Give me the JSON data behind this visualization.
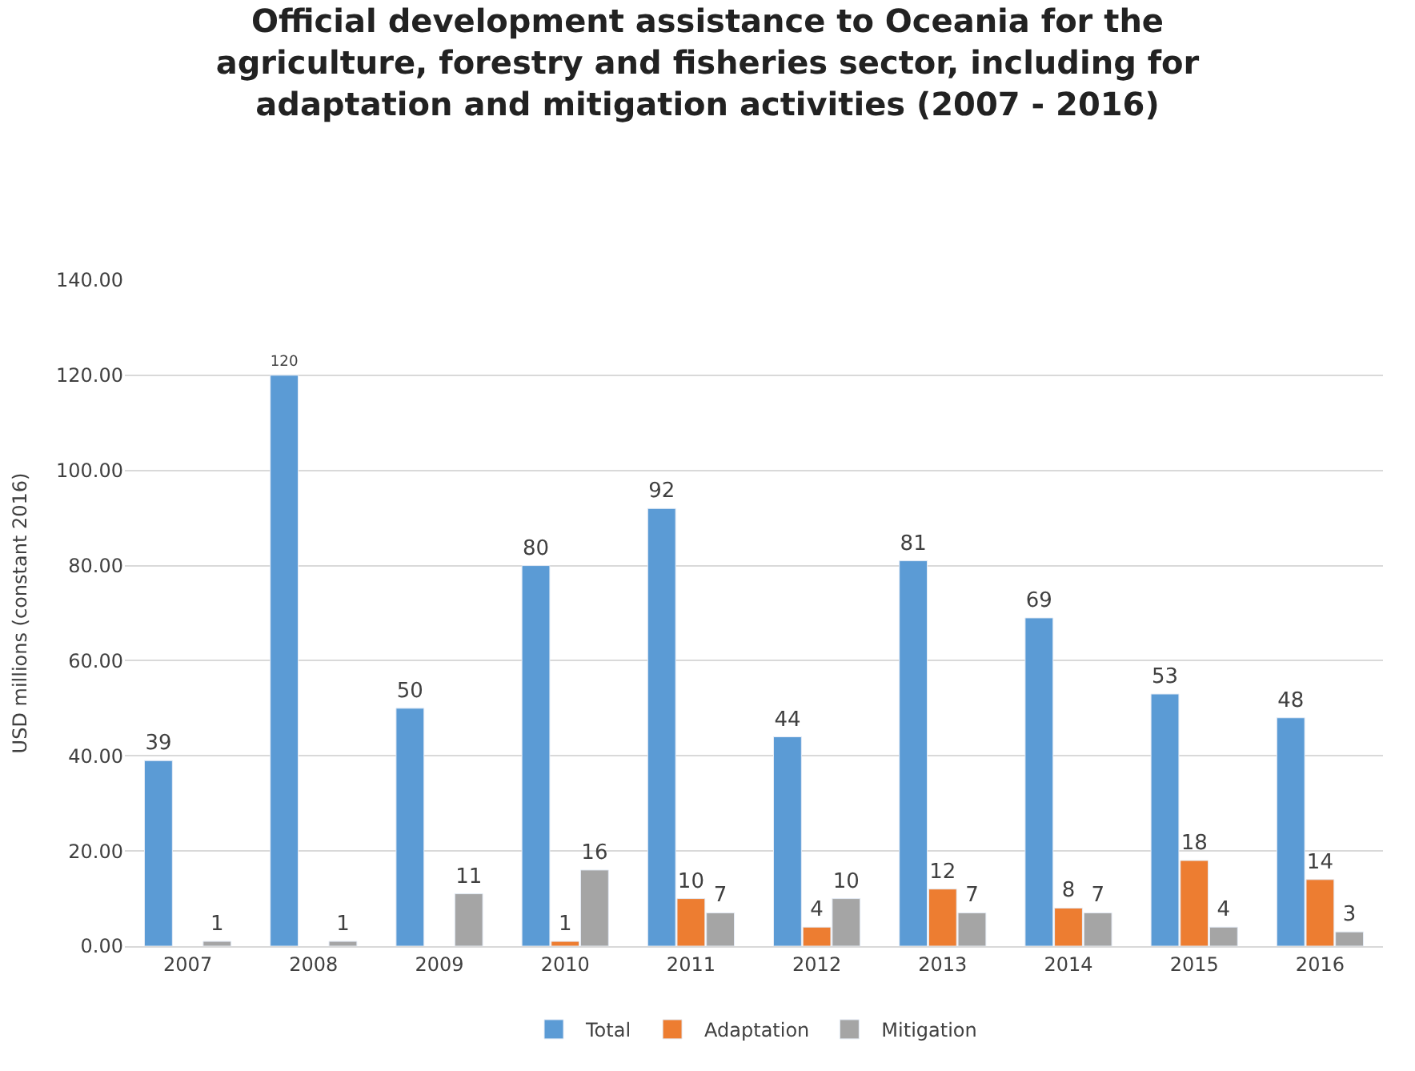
{
  "chart_data": {
    "type": "bar",
    "title": "Official development assistance to Oceania for the agriculture, forestry and fisheries sector, including for adaptation and mitigation activities (2007 - 2016)",
    "ylabel": "USD millions (constant 2016)",
    "categories": [
      "2007",
      "2008",
      "2009",
      "2010",
      "2011",
      "2012",
      "2013",
      "2014",
      "2015",
      "2016"
    ],
    "series": [
      {
        "name": "Total",
        "color": "#5b9bd5",
        "values": [
          39,
          120,
          50,
          80,
          92,
          44,
          81,
          69,
          53,
          48
        ]
      },
      {
        "name": "Adaptation",
        "color": "#ed7d31",
        "values": [
          null,
          null,
          null,
          1,
          10,
          4,
          12,
          8,
          18,
          14
        ]
      },
      {
        "name": "Mitigation",
        "color": "#a5a5a5",
        "values": [
          1,
          1,
          11,
          16,
          7,
          10,
          7,
          7,
          4,
          3
        ]
      }
    ],
    "ylim": [
      0,
      140
    ],
    "yticks": [
      {
        "value": 0,
        "label": "0.00"
      },
      {
        "value": 20,
        "label": "20.00"
      },
      {
        "value": 40,
        "label": "40.00"
      },
      {
        "value": 60,
        "label": "60.00"
      },
      {
        "value": 80,
        "label": "80.00"
      },
      {
        "value": 100,
        "label": "100.00"
      },
      {
        "value": 120,
        "label": "120.00"
      },
      {
        "value": 140,
        "label": "140.00"
      }
    ],
    "data_labels": true,
    "grid": "y",
    "legend": "bottom"
  }
}
